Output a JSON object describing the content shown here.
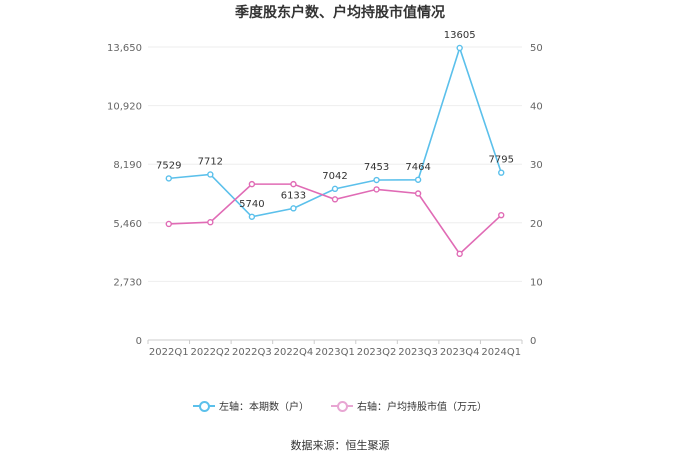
{
  "chart_data": {
    "type": "line",
    "title": "季度股东户数、户均持股市值情况",
    "categories": [
      "2022Q1",
      "2022Q2",
      "2022Q3",
      "2022Q4",
      "2023Q1",
      "2023Q2",
      "2023Q3",
      "2023Q4",
      "2024Q1"
    ],
    "left_axis": {
      "min": 0,
      "max": 13650,
      "ticks": [
        "0",
        "2,730",
        "5,460",
        "8,190",
        "10,920",
        "13,650"
      ],
      "tick_values": [
        0,
        2730,
        5460,
        8190,
        10920,
        13650
      ]
    },
    "right_axis": {
      "min": 0,
      "max": 50,
      "ticks": [
        "0",
        "10",
        "20",
        "30",
        "40",
        "50"
      ],
      "tick_values": [
        0,
        10,
        20,
        30,
        40,
        50
      ]
    },
    "series": [
      {
        "name": "左轴：本期数（户）",
        "axis": "left",
        "color": "#5bc0eb",
        "values": [
          7529,
          7712,
          5740,
          6133,
          7042,
          7453,
          7464,
          13605,
          7795
        ],
        "labels": [
          "7529",
          "7712",
          "5740",
          "6133",
          "7042",
          "7453",
          "7464",
          "13605",
          "7795"
        ]
      },
      {
        "name": "右轴：户均持股市值（万元）",
        "axis": "right",
        "color": "#e06bb5",
        "values": [
          19.8,
          20.1,
          26.6,
          26.6,
          24.0,
          25.7,
          25.0,
          14.7,
          21.3
        ]
      }
    ],
    "legend_position": "bottom",
    "grid": true
  },
  "source_text": "数据来源：恒生聚源"
}
